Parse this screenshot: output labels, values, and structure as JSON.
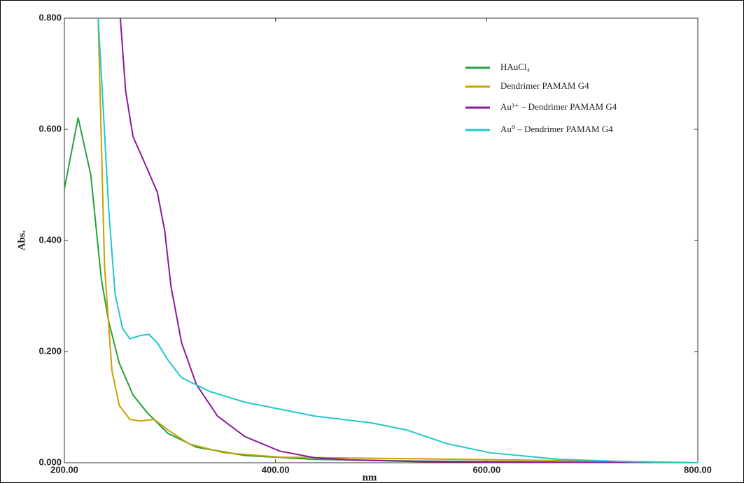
{
  "chart_data": {
    "type": "line",
    "x_label": "nm",
    "y_label": "Abs.",
    "xlim": [
      200,
      800
    ],
    "ylim": [
      0,
      0.8
    ],
    "xticks": [
      {
        "value": 200,
        "label": "200.00"
      },
      {
        "value": 400,
        "label": "400.00"
      },
      {
        "value": 600,
        "label": "600.00"
      },
      {
        "value": 800,
        "label": "800.00"
      }
    ],
    "yticks": [
      {
        "value": 0,
        "label": "0.000"
      },
      {
        "value": 0.2,
        "label": "0.200"
      },
      {
        "value": 0.4,
        "label": "0.400"
      },
      {
        "value": 0.6,
        "label": "0.600"
      },
      {
        "value": 0.8,
        "label": "0.800"
      }
    ],
    "series": [
      {
        "name": "HAuCl₄",
        "color": "#22a33a",
        "x": [
          200,
          213,
          225,
          235,
          242,
          252,
          265,
          278,
          298,
          325,
          371,
          437,
          537,
          669,
          800
        ],
        "values": [
          0.493,
          0.621,
          0.518,
          0.33,
          0.254,
          0.179,
          0.122,
          0.091,
          0.053,
          0.028,
          0.013,
          0.006,
          0.003,
          0.001,
          0
        ]
      },
      {
        "name": "Dendrimer PAMAM G4",
        "color": "#c8a000",
        "x": [
          232,
          235,
          238,
          245,
          252,
          262,
          272,
          285,
          298,
          318,
          351,
          404,
          537,
          669,
          800
        ],
        "values": [
          0.8,
          0.58,
          0.355,
          0.166,
          0.103,
          0.078,
          0.075,
          0.078,
          0.059,
          0.034,
          0.018,
          0.01,
          0.007,
          0.004,
          0
        ]
      },
      {
        "name": "Au³⁺ – Dendrimer PAMAM G4",
        "color": "#8a1a9a",
        "x": [
          253,
          258,
          265,
          278,
          288,
          295,
          301,
          311,
          325,
          345,
          371,
          404,
          437,
          471,
          537,
          669,
          800
        ],
        "values": [
          0.8,
          0.669,
          0.587,
          0.531,
          0.487,
          0.418,
          0.317,
          0.216,
          0.141,
          0.084,
          0.047,
          0.021,
          0.009,
          0.005,
          0.002,
          0.001,
          0
        ]
      },
      {
        "name": "Au⁰ – Dendrimer PAMAM G4",
        "color": "#20c8cc",
        "x": [
          232,
          235,
          242,
          248,
          255,
          262,
          272,
          280,
          288,
          298,
          311,
          338,
          371,
          437,
          490,
          524,
          563,
          603,
          669,
          736,
          800
        ],
        "values": [
          0.8,
          0.7,
          0.455,
          0.304,
          0.242,
          0.223,
          0.229,
          0.231,
          0.216,
          0.185,
          0.153,
          0.128,
          0.109,
          0.084,
          0.072,
          0.059,
          0.034,
          0.018,
          0.006,
          0.002,
          0
        ]
      }
    ]
  }
}
